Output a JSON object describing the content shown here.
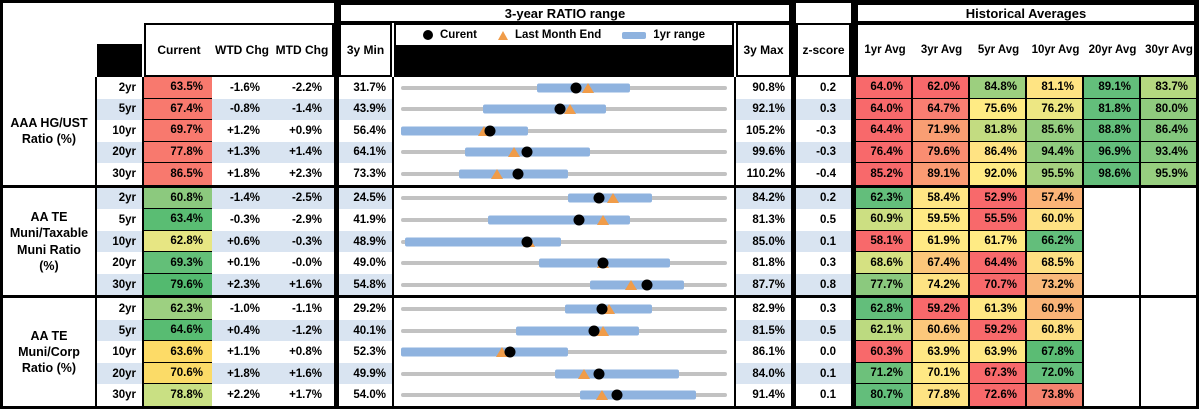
{
  "header": {
    "range_title": "3-year RATIO range",
    "historical_title": "Historical Averages",
    "col_current": "Current",
    "col_wtd": "WTD Chg",
    "col_mtd": "MTD Chg",
    "col_3y_min": "3y Min",
    "col_3y_max": "3y Max",
    "col_zscore": "z-score",
    "avg_cols": [
      "1yr Avg",
      "3yr Avg",
      "5yr Avg",
      "10yr Avg",
      "20yr Avg",
      "30yr Avg"
    ]
  },
  "legend": {
    "current_label": "Curent",
    "last_month_label": "Last Month End",
    "range_label": "1yr range"
  },
  "colors": {
    "stripe": "#D9E4F1",
    "bar_1yr": "#8FB3DF",
    "track": "#C2C2C2",
    "triangle": "#F09C49",
    "dot": "#000000"
  },
  "chart_data": {
    "type": "table",
    "title": "Municipal ratio ranges with 3-year min/max, 1yr range charts and historical averages",
    "groups": [
      {
        "label": "AAA HG/UST\nRatio (%)",
        "rows": [
          {
            "tenor": "2yr",
            "current": "63.5%",
            "current_bg": "#F8796E",
            "wtd": "-1.6%",
            "mtd": "-2.2%",
            "min_3y": "31.7%",
            "max_3y": "90.8%",
            "z": "0.2",
            "chart": {
              "bar_pct": [
                41.7,
                70.4
              ],
              "dot_pct": 53.8,
              "tri_pct": 57.5
            },
            "avgs": [
              {
                "t": "64.0%",
                "bg": "#F8696B"
              },
              {
                "t": "62.0%",
                "bg": "#F8696B"
              },
              {
                "t": "84.8%",
                "bg": "#9CCF7F"
              },
              {
                "t": "81.1%",
                "bg": "#FFE483"
              },
              {
                "t": "89.1%",
                "bg": "#63BE7B"
              },
              {
                "t": "83.7%",
                "bg": "#B5D880"
              }
            ]
          },
          {
            "tenor": "5yr",
            "current": "67.4%",
            "current_bg": "#F8796E",
            "wtd": "-0.8%",
            "mtd": "-1.4%",
            "min_3y": "43.9%",
            "max_3y": "92.1%",
            "z": "0.3",
            "chart": {
              "bar_pct": [
                25.1,
                62.8
              ],
              "dot_pct": 48.8,
              "tri_pct": 51.7
            },
            "avgs": [
              {
                "t": "64.0%",
                "bg": "#F8696B"
              },
              {
                "t": "64.7%",
                "bg": "#F97E72"
              },
              {
                "t": "75.6%",
                "bg": "#FFEB84"
              },
              {
                "t": "76.2%",
                "bg": "#EDE783"
              },
              {
                "t": "81.8%",
                "bg": "#63BE7B"
              },
              {
                "t": "80.0%",
                "bg": "#90CB7E"
              }
            ]
          },
          {
            "tenor": "10yr",
            "current": "69.7%",
            "current_bg": "#F8796E",
            "wtd": "+1.2%",
            "mtd": "+0.9%",
            "min_3y": "56.4%",
            "max_3y": "105.2%",
            "z": "-0.3",
            "chart": {
              "bar_pct": [
                0,
                39.0
              ],
              "dot_pct": 27.3,
              "tri_pct": 25.4
            },
            "avgs": [
              {
                "t": "64.4%",
                "bg": "#F8696B"
              },
              {
                "t": "71.9%",
                "bg": "#F99E73"
              },
              {
                "t": "81.8%",
                "bg": "#C3DC81"
              },
              {
                "t": "85.6%",
                "bg": "#95CD7F"
              },
              {
                "t": "88.8%",
                "bg": "#63BE7B"
              },
              {
                "t": "86.4%",
                "bg": "#83C77D"
              }
            ]
          },
          {
            "tenor": "20yr",
            "current": "77.8%",
            "current_bg": "#F8796E",
            "wtd": "+1.3%",
            "mtd": "+1.4%",
            "min_3y": "64.1%",
            "max_3y": "99.6%",
            "z": "-0.3",
            "chart": {
              "bar_pct": [
                19.6,
                58.0
              ],
              "dot_pct": 38.6,
              "tri_pct": 34.6
            },
            "avgs": [
              {
                "t": "76.4%",
                "bg": "#F8696B"
              },
              {
                "t": "79.6%",
                "bg": "#FA8D71"
              },
              {
                "t": "86.4%",
                "bg": "#FFE383"
              },
              {
                "t": "94.4%",
                "bg": "#8FCB7E"
              },
              {
                "t": "96.9%",
                "bg": "#63BE7B"
              },
              {
                "t": "93.4%",
                "bg": "#84C87D"
              }
            ]
          },
          {
            "tenor": "30yr",
            "current": "86.5%",
            "current_bg": "#F8796E",
            "wtd": "+1.8%",
            "mtd": "+2.3%",
            "min_3y": "73.3%",
            "max_3y": "110.2%",
            "z": "-0.4",
            "chart": {
              "bar_pct": [
                17.8,
                51.3
              ],
              "dot_pct": 35.8,
              "tri_pct": 29.5
            },
            "avgs": [
              {
                "t": "85.2%",
                "bg": "#F8696B"
              },
              {
                "t": "89.1%",
                "bg": "#FA9B73"
              },
              {
                "t": "92.0%",
                "bg": "#FFEB84"
              },
              {
                "t": "95.5%",
                "bg": "#A5D280"
              },
              {
                "t": "98.6%",
                "bg": "#63BE7B"
              },
              {
                "t": "95.9%",
                "bg": "#97CE7F"
              }
            ]
          }
        ]
      },
      {
        "label": "AA TE\nMuni/Taxable\nMuni Ratio\n(%)",
        "rows": [
          {
            "tenor": "2yr",
            "current": "60.8%",
            "current_bg": "#8CC97E",
            "wtd": "-1.4%",
            "mtd": "-2.5%",
            "min_3y": "24.5%",
            "max_3y": "84.2%",
            "z": "0.2",
            "chart": {
              "bar_pct": [
                51.3,
                76.9
              ],
              "dot_pct": 60.8,
              "tri_pct": 65.0
            },
            "avgs": [
              {
                "t": "62.3%",
                "bg": "#63BE7B"
              },
              {
                "t": "58.4%",
                "bg": "#FFE684"
              },
              {
                "t": "52.9%",
                "bg": "#F8696B"
              },
              {
                "t": "57.4%",
                "bg": "#FBB377"
              },
              null,
              null
            ]
          },
          {
            "tenor": "5yr",
            "current": "63.4%",
            "current_bg": "#5ABD73",
            "wtd": "-0.3%",
            "mtd": "-2.9%",
            "min_3y": "41.9%",
            "max_3y": "81.3%",
            "z": "0.5",
            "chart": {
              "bar_pct": [
                26.6,
                70.2
              ],
              "dot_pct": 54.6,
              "tri_pct": 61.9
            },
            "avgs": [
              {
                "t": "60.9%",
                "bg": "#CCDF82"
              },
              {
                "t": "59.5%",
                "bg": "#FFEA84"
              },
              {
                "t": "55.5%",
                "bg": "#F8696B"
              },
              {
                "t": "60.0%",
                "bg": "#FEE183"
              },
              null,
              null
            ]
          },
          {
            "tenor": "10yr",
            "current": "62.8%",
            "current_bg": "#E7E683",
            "wtd": "+0.6%",
            "mtd": "-0.3%",
            "min_3y": "48.9%",
            "max_3y": "85.0%",
            "z": "0.1",
            "chart": {
              "bar_pct": [
                1.3,
                49.2
              ],
              "dot_pct": 38.5,
              "tri_pct": 39.3
            },
            "avgs": [
              {
                "t": "58.1%",
                "bg": "#F8696B"
              },
              {
                "t": "61.9%",
                "bg": "#FFE984"
              },
              {
                "t": "61.7%",
                "bg": "#FFEB84"
              },
              {
                "t": "66.2%",
                "bg": "#63BE7B"
              },
              null,
              null
            ]
          },
          {
            "tenor": "20yr",
            "current": "69.3%",
            "current_bg": "#63BF78",
            "wtd": "+0.1%",
            "mtd": "-0.0%",
            "min_3y": "49.0%",
            "max_3y": "81.8%",
            "z": "0.3",
            "chart": {
              "bar_pct": [
                42.2,
                82.4
              ],
              "dot_pct": 61.9,
              "tri_pct": 61.9
            },
            "avgs": [
              {
                "t": "68.6%",
                "bg": "#D5E182"
              },
              {
                "t": "67.4%",
                "bg": "#FCC77A"
              },
              {
                "t": "64.4%",
                "bg": "#F8696B"
              },
              {
                "t": "68.5%",
                "bg": "#FEE083"
              },
              null,
              null
            ]
          },
          {
            "tenor": "30yr",
            "current": "79.6%",
            "current_bg": "#53BA6F",
            "wtd": "+2.3%",
            "mtd": "+1.6%",
            "min_3y": "54.8%",
            "max_3y": "87.7%",
            "z": "0.8",
            "chart": {
              "bar_pct": [
                58.0,
                86.9
              ],
              "dot_pct": 75.4,
              "tri_pct": 70.5
            },
            "avgs": [
              {
                "t": "77.7%",
                "bg": "#8BC97E"
              },
              {
                "t": "74.2%",
                "bg": "#FEE383"
              },
              {
                "t": "70.7%",
                "bg": "#F8696B"
              },
              {
                "t": "73.2%",
                "bg": "#F9B97A"
              },
              null,
              null
            ]
          }
        ]
      },
      {
        "label": "AA TE\nMuni/Corp\nRatio (%)",
        "rows": [
          {
            "tenor": "2yr",
            "current": "62.3%",
            "current_bg": "#9DD081",
            "wtd": "-1.0%",
            "mtd": "-1.1%",
            "min_3y": "29.2%",
            "max_3y": "82.9%",
            "z": "0.3",
            "chart": {
              "bar_pct": [
                50.3,
                76.9
              ],
              "dot_pct": 61.6,
              "tri_pct": 63.7
            },
            "avgs": [
              {
                "t": "62.8%",
                "bg": "#63BE7B"
              },
              {
                "t": "59.2%",
                "bg": "#F8696B"
              },
              {
                "t": "61.3%",
                "bg": "#FFE884"
              },
              {
                "t": "60.9%",
                "bg": "#FAB478"
              },
              null,
              null
            ]
          },
          {
            "tenor": "5yr",
            "current": "64.6%",
            "current_bg": "#58BC72",
            "wtd": "+0.4%",
            "mtd": "-1.2%",
            "min_3y": "40.1%",
            "max_3y": "81.5%",
            "z": "0.5",
            "chart": {
              "bar_pct": [
                35.2,
                72.9
              ],
              "dot_pct": 59.2,
              "tri_pct": 62.1
            },
            "avgs": [
              {
                "t": "62.1%",
                "bg": "#BCDA80"
              },
              {
                "t": "60.6%",
                "bg": "#FCC87B"
              },
              {
                "t": "59.2%",
                "bg": "#F8696B"
              },
              {
                "t": "60.8%",
                "bg": "#FEDE82"
              },
              null,
              null
            ]
          },
          {
            "tenor": "10yr",
            "current": "63.6%",
            "current_bg": "#FDDB67",
            "wtd": "+1.1%",
            "mtd": "+0.8%",
            "min_3y": "52.3%",
            "max_3y": "86.1%",
            "z": "0.0",
            "chart": {
              "bar_pct": [
                0,
                51.1
              ],
              "dot_pct": 33.4,
              "tri_pct": 31.1
            },
            "avgs": [
              {
                "t": "60.3%",
                "bg": "#F8696B"
              },
              {
                "t": "63.9%",
                "bg": "#FFE784"
              },
              {
                "t": "63.9%",
                "bg": "#FFE784"
              },
              {
                "t": "67.8%",
                "bg": "#5BBC74"
              },
              null,
              null
            ]
          },
          {
            "tenor": "20yr",
            "current": "70.6%",
            "current_bg": "#FBDB67",
            "wtd": "+1.8%",
            "mtd": "+1.6%",
            "min_3y": "49.9%",
            "max_3y": "84.0%",
            "z": "0.1",
            "chart": {
              "bar_pct": [
                47.2,
                85.4
              ],
              "dot_pct": 60.7,
              "tri_pct": 56.0
            },
            "avgs": [
              {
                "t": "71.2%",
                "bg": "#6DC17B"
              },
              {
                "t": "70.1%",
                "bg": "#FFE984"
              },
              {
                "t": "67.3%",
                "bg": "#F8696B"
              },
              {
                "t": "72.0%",
                "bg": "#63BE7B"
              },
              null,
              null
            ]
          },
          {
            "tenor": "30yr",
            "current": "78.8%",
            "current_bg": "#C9E083",
            "wtd": "+2.2%",
            "mtd": "+1.7%",
            "min_3y": "54.0%",
            "max_3y": "91.4%",
            "z": "0.1",
            "chart": {
              "bar_pct": [
                54.8,
                90.5
              ],
              "dot_pct": 66.3,
              "tri_pct": 61.8
            },
            "avgs": [
              {
                "t": "80.7%",
                "bg": "#63BE7B"
              },
              {
                "t": "77.8%",
                "bg": "#FEE383"
              },
              {
                "t": "72.6%",
                "bg": "#F8696B"
              },
              {
                "t": "73.8%",
                "bg": "#F5836F"
              },
              null,
              null
            ]
          }
        ]
      }
    ]
  }
}
